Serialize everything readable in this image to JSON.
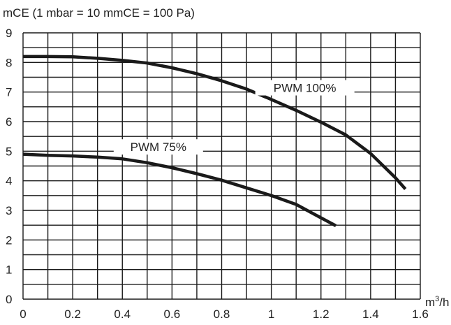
{
  "chart_data": {
    "type": "line",
    "ylabel": "mCE (1 mbar = 10 mmCE = 100 Pa)",
    "xlabel_unit": "m",
    "xlabel_sup": "3",
    "xlabel_tail": "/h",
    "xlim": [
      0,
      1.6
    ],
    "ylim": [
      0,
      9
    ],
    "x_ticks": [
      "0",
      "0.2",
      "0.4",
      "0.6",
      "0.8",
      "1",
      "1.2",
      "1.4",
      "1.6"
    ],
    "y_ticks": [
      "0",
      "1",
      "2",
      "3",
      "4",
      "5",
      "6",
      "7",
      "8",
      "9"
    ],
    "grid": true,
    "series": [
      {
        "name": "PWM 100%",
        "x": [
          0,
          0.1,
          0.2,
          0.3,
          0.4,
          0.5,
          0.6,
          0.7,
          0.8,
          0.9,
          1.0,
          1.1,
          1.2,
          1.3,
          1.4,
          1.5,
          1.54
        ],
        "y": [
          8.2,
          8.2,
          8.19,
          8.14,
          8.07,
          7.98,
          7.82,
          7.62,
          7.38,
          7.1,
          6.75,
          6.38,
          5.98,
          5.55,
          4.92,
          4.1,
          3.72
        ]
      },
      {
        "name": "PWM 75%",
        "x": [
          0,
          0.1,
          0.2,
          0.3,
          0.4,
          0.5,
          0.6,
          0.7,
          0.8,
          0.9,
          1.0,
          1.1,
          1.2,
          1.26
        ],
        "y": [
          4.9,
          4.86,
          4.84,
          4.8,
          4.74,
          4.61,
          4.44,
          4.24,
          4.02,
          3.76,
          3.5,
          3.2,
          2.75,
          2.48
        ]
      }
    ]
  }
}
